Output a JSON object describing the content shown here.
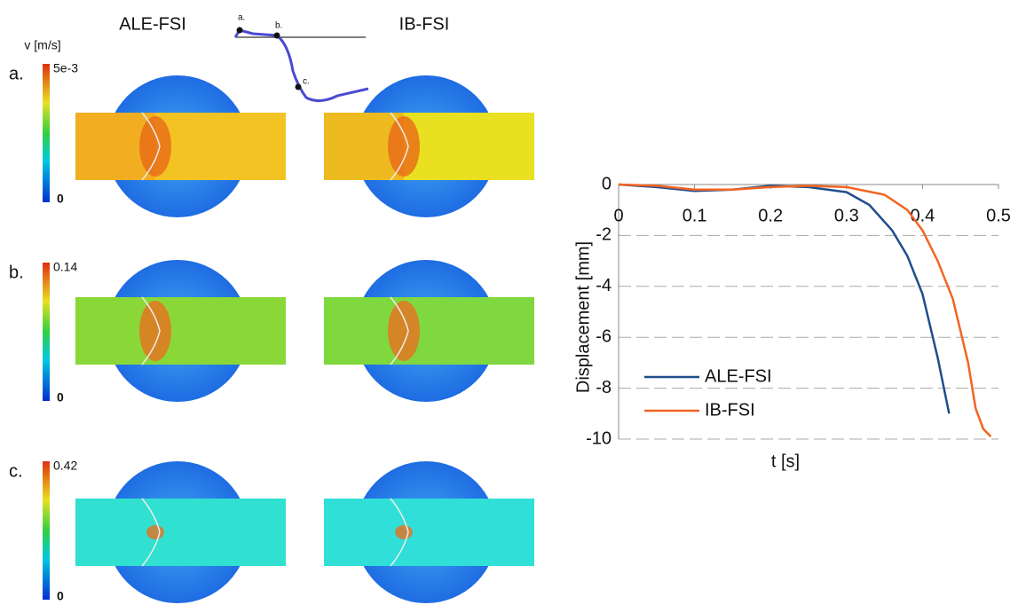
{
  "panels": {
    "col_titles": [
      "ALE-FSI",
      "IB-FSI"
    ],
    "colorbar_title": "v [m/s]",
    "rows": [
      {
        "label": "a.",
        "max": "5e-3",
        "min": "0"
      },
      {
        "label": "b.",
        "max": "0.14",
        "min": "0"
      },
      {
        "label": "c.",
        "max": "0.42",
        "min": "0"
      }
    ],
    "inset_labels": [
      "a.",
      "b.",
      "c."
    ]
  },
  "chart_data": {
    "type": "line",
    "x_label": "t [s]",
    "y_label": "Displacement [mm]",
    "xlim": [
      0,
      0.5
    ],
    "xticks": [
      0,
      0.1,
      0.2,
      0.3,
      0.4,
      0.5
    ],
    "ylim": [
      -10,
      0
    ],
    "yticks": [
      0,
      -2,
      -4,
      -6,
      -8,
      -10
    ],
    "grid": true,
    "legend": "lower left",
    "series": [
      {
        "name": "ALE-FSI",
        "color": "#1f4e8c",
        "x": [
          0,
          0.05,
          0.1,
          0.15,
          0.2,
          0.25,
          0.3,
          0.33,
          0.36,
          0.38,
          0.4,
          0.42,
          0.435
        ],
        "values": [
          0,
          -0.1,
          -0.25,
          -0.2,
          -0.05,
          -0.1,
          -0.3,
          -0.8,
          -1.8,
          -2.8,
          -4.3,
          -6.8,
          -9.0
        ]
      },
      {
        "name": "IB-FSI",
        "color": "#f26522",
        "x": [
          0,
          0.05,
          0.1,
          0.15,
          0.2,
          0.25,
          0.3,
          0.35,
          0.38,
          0.4,
          0.42,
          0.44,
          0.46,
          0.47,
          0.48,
          0.49
        ],
        "values": [
          0,
          -0.05,
          -0.2,
          -0.2,
          -0.1,
          -0.05,
          -0.1,
          -0.4,
          -1.0,
          -1.8,
          -3.0,
          -4.5,
          -7.0,
          -8.8,
          -9.6,
          -9.9
        ]
      }
    ]
  }
}
